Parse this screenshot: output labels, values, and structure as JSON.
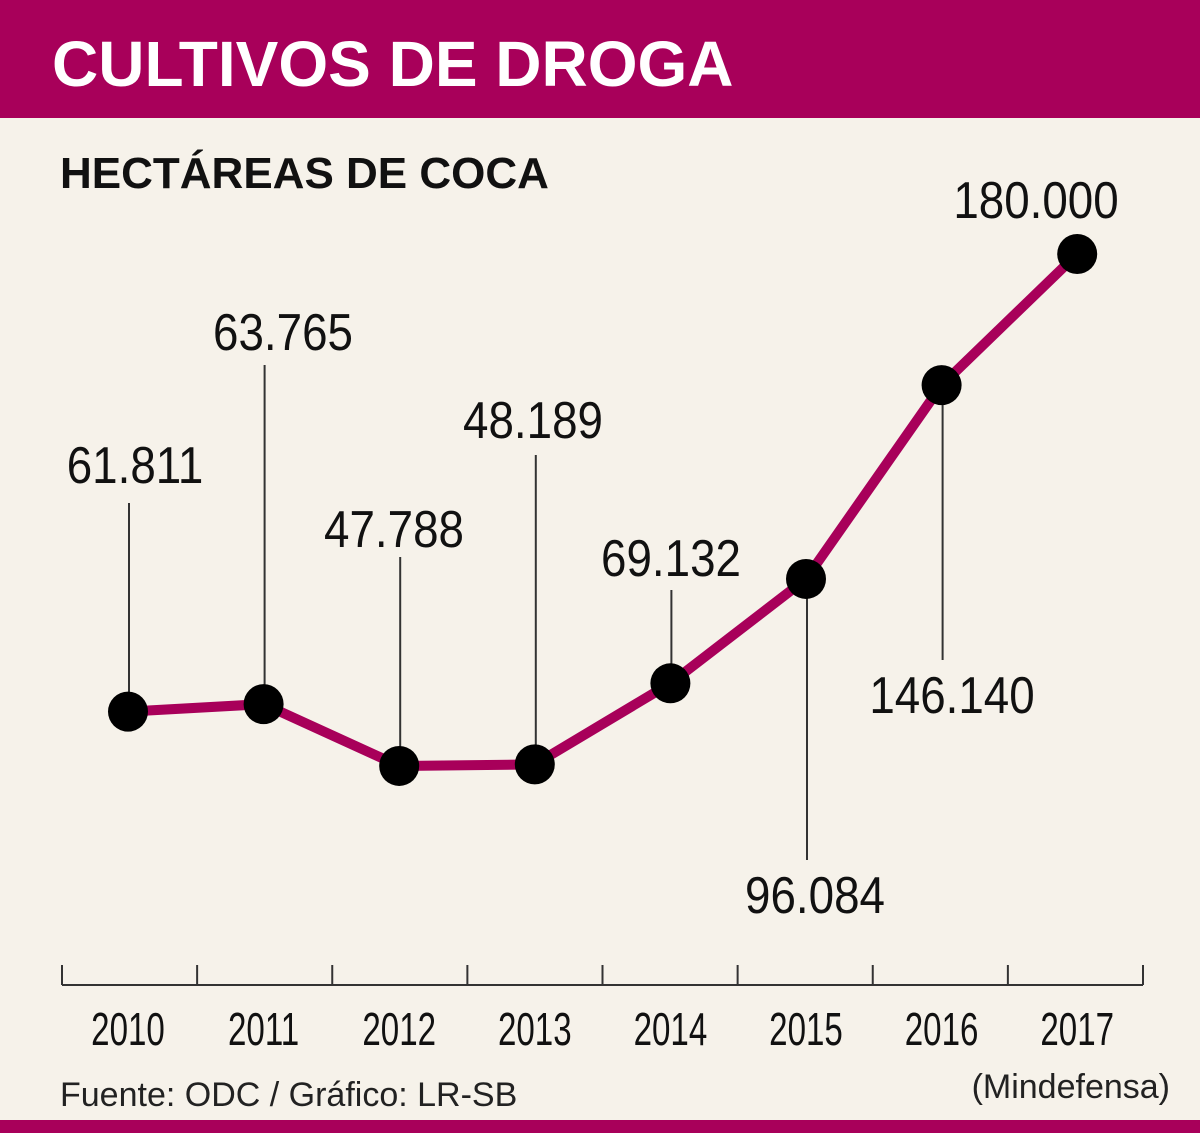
{
  "title": "CULTIVOS DE DROGA",
  "subtitle": "HECTÁREAS DE COCA",
  "source": "Fuente: ODC / Gráfico: LR-SB",
  "colors": {
    "accent": "#a8005a",
    "background": "#f6f2ea",
    "marker": "#000000"
  },
  "chart_data": {
    "type": "line",
    "title": "HECTÁREAS DE COCA",
    "categories": [
      "2010",
      "2011",
      "2012",
      "2013",
      "2014",
      "2015",
      "2016",
      "2017"
    ],
    "values": [
      61811,
      63765,
      47788,
      48189,
      69132,
      96084,
      146140,
      180000
    ],
    "data_labels": [
      "61.811",
      "63.765",
      "47.788",
      "48.189",
      "69.132",
      "96.084",
      "146.140",
      "180.000"
    ],
    "category_notes": {
      "2017": "(Mindefensa)"
    },
    "ylim": [
      0,
      180000
    ],
    "grid": false,
    "legend": "none"
  }
}
